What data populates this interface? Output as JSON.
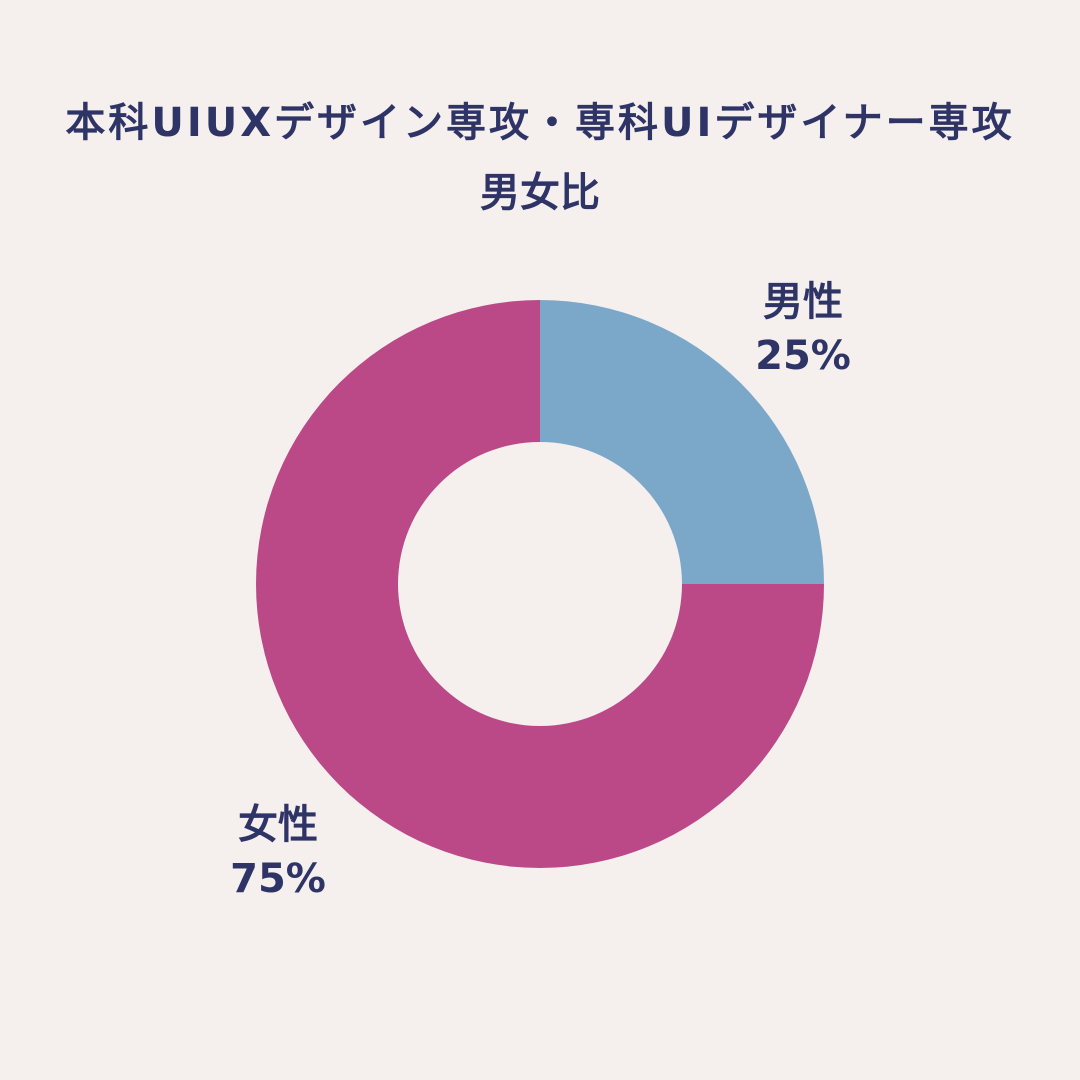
{
  "title": {
    "line1": "本科UIUXデザイン専攻・専科UIデザイナー専攻",
    "line2": "男女比"
  },
  "colors": {
    "background": "#f5efee",
    "text": "#2e3466",
    "male": "#7ba7c9",
    "female": "#bb4987"
  },
  "chart_data": {
    "type": "pie",
    "donut": true,
    "title": "本科UIUXデザイン専攻・専科UIデザイナー専攻 男女比",
    "slices": [
      {
        "label": "男性",
        "value": 25,
        "display": "25%",
        "color": "#7ba7c9"
      },
      {
        "label": "女性",
        "value": 75,
        "display": "75%",
        "color": "#bb4987"
      }
    ],
    "start": "12 o'clock",
    "direction": "clockwise",
    "legend": "none"
  }
}
